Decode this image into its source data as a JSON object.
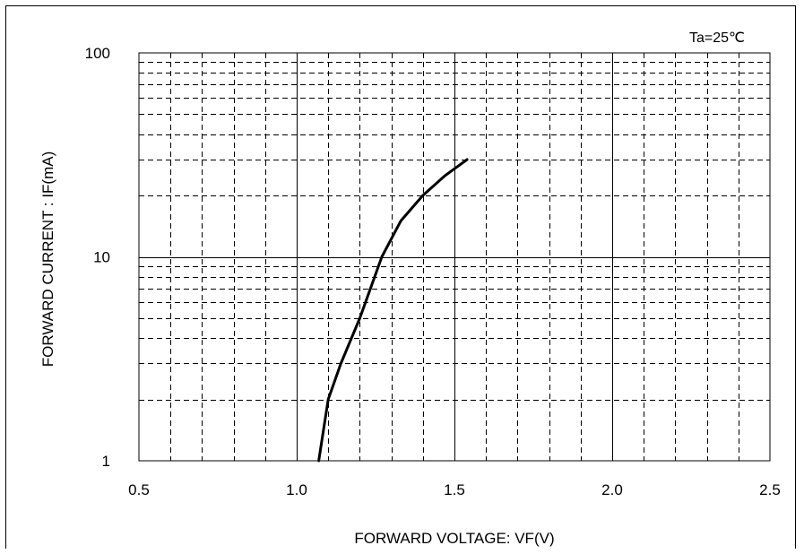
{
  "chart_data": {
    "type": "line",
    "annotation": "Ta=25℃",
    "xlabel": "FORWARD VOLTAGE: VF(V)",
    "ylabel": "FORWARD CURRENT : IF(mA)",
    "xlim": [
      0.5,
      2.5
    ],
    "ylim": [
      1,
      100
    ],
    "y_scale": "log",
    "x_ticks": [
      "0.5",
      "1.0",
      "1.5",
      "2.0",
      "2.5"
    ],
    "y_ticks": [
      "1",
      "10",
      "100"
    ],
    "grid": true,
    "series": [
      {
        "x": [
          1.07,
          1.1,
          1.14,
          1.2,
          1.27,
          1.33,
          1.4,
          1.47,
          1.54
        ],
        "y": [
          1,
          2,
          3,
          5,
          10,
          15,
          20,
          25,
          30
        ]
      }
    ]
  }
}
